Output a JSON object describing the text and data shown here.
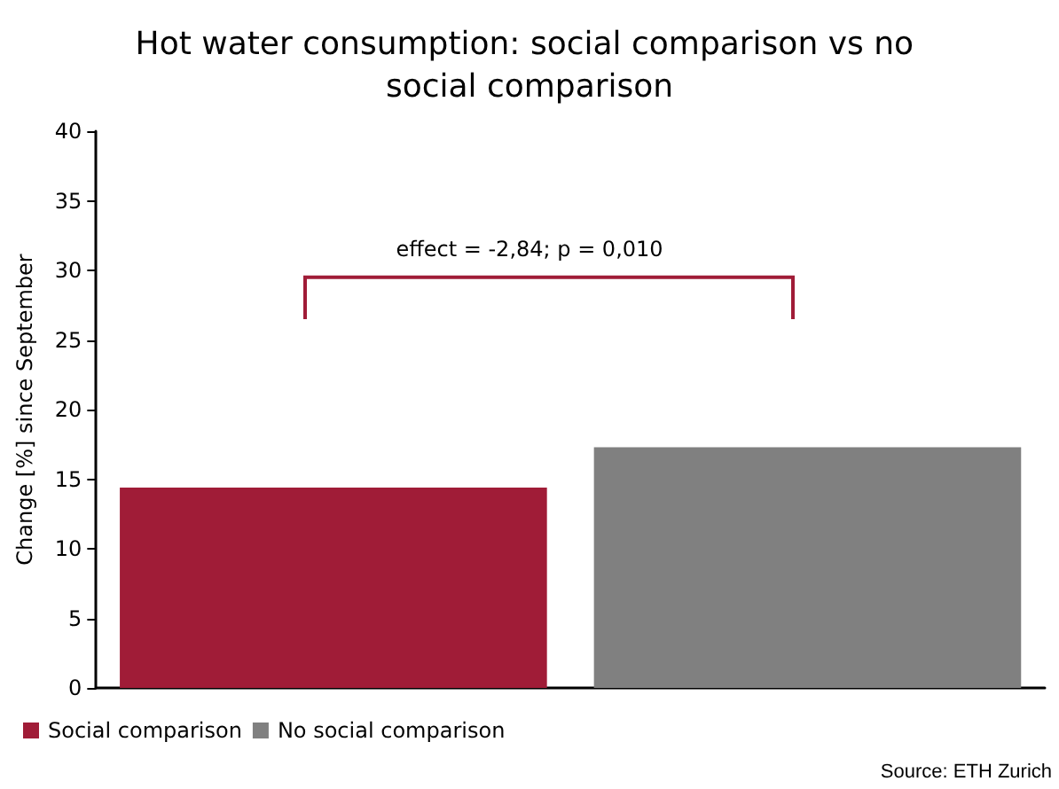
{
  "chart_data": {
    "type": "bar",
    "title": "Hot water consumption: social comparison vs no social comparison",
    "ylabel": "Change [%] since September",
    "categories": [
      null
    ],
    "series": [
      {
        "name": "Social comparison",
        "color": "#a01c37",
        "values": [
          14.4
        ]
      },
      {
        "name": "No social comparison",
        "color": "#808080",
        "values": [
          17.3
        ]
      }
    ],
    "ylim": [
      0,
      40
    ],
    "yticks": [
      0,
      5,
      10,
      15,
      20,
      25,
      30,
      35,
      40
    ],
    "grid": false,
    "legend": "bottom left",
    "annotations": [
      "effect = -2,84; p = 0,010",
      "Source: ETH Zurich"
    ]
  }
}
